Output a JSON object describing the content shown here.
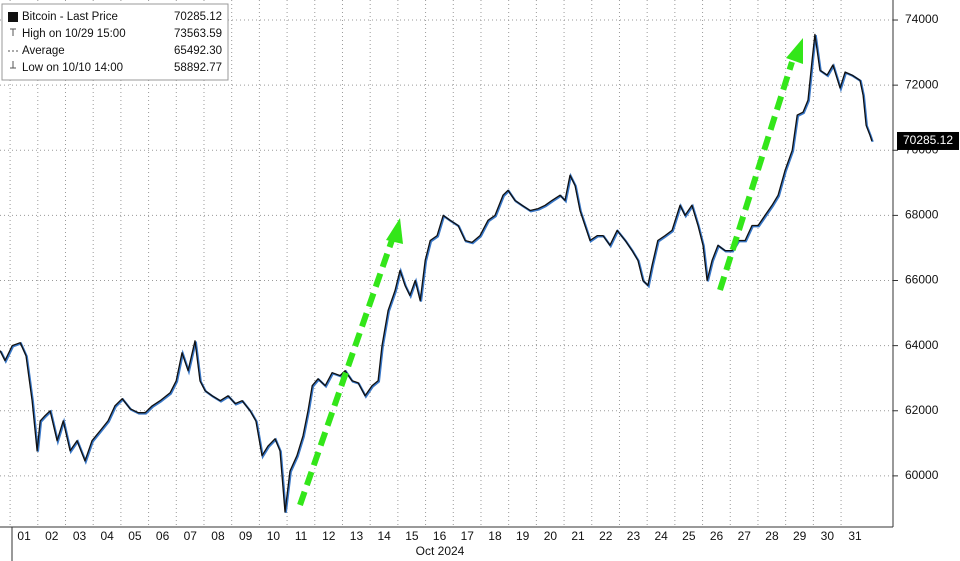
{
  "chart_data": {
    "type": "line",
    "x_title": "Oct 2024",
    "series": [
      {
        "name": "Bitcoin - Last Price",
        "color": "#111111",
        "values": [
          63850,
          63540,
          64000,
          64090,
          63690,
          62310,
          60770,
          61690,
          61850,
          62000,
          61080,
          61690,
          60770,
          61080,
          60460,
          61080,
          61380,
          61690,
          62150,
          62370,
          62060,
          61940,
          61940,
          62150,
          62310,
          62550,
          62920,
          63780,
          63230,
          64150,
          62920,
          62620,
          62460,
          62310,
          62460,
          62220,
          62310,
          62000,
          61690,
          60620,
          60920,
          61140,
          60770,
          58890,
          60150,
          60620,
          61230,
          62000,
          62770,
          62980,
          62770,
          63170,
          63080,
          63230,
          62920,
          62860,
          62460,
          62770,
          62920,
          64000,
          65080,
          65690,
          66310,
          65850,
          65540,
          66000,
          65380,
          66620,
          67230,
          67380,
          68000,
          67850,
          67690,
          67230,
          67170,
          67380,
          67850,
          68000,
          68620,
          68770,
          68460,
          68310,
          68150,
          68210,
          68310,
          68460,
          68620,
          68460,
          69230,
          68920,
          68150,
          67690,
          67230,
          67380,
          67380,
          67080,
          67540,
          67230,
          66920,
          66620,
          66000,
          65850,
          66460,
          67230,
          67380,
          67540,
          68310,
          68000,
          68310,
          67690,
          67080,
          66000,
          66620,
          67080,
          66920,
          66920,
          67230,
          67230,
          67690,
          67690,
          68000,
          68310,
          68620,
          69380,
          70000,
          71080,
          71170,
          71540,
          72770,
          73560,
          72460,
          72310,
          72620,
          71910,
          72400,
          72310,
          72150,
          71690,
          70770,
          70460,
          70285.12
        ]
      }
    ],
    "x": [
      0.13,
      0.31,
      0.57,
      0.86,
      1.07,
      1.29,
      1.47,
      1.58,
      1.76,
      1.94,
      2.19,
      2.41,
      2.66,
      2.91,
      3.2,
      3.45,
      3.74,
      4.03,
      4.28,
      4.54,
      4.83,
      5.12,
      5.37,
      5.62,
      5.91,
      6.27,
      6.49,
      6.7,
      6.92,
      7.17,
      7.35,
      7.53,
      7.79,
      8.08,
      8.36,
      8.62,
      8.87,
      9.16,
      9.37,
      9.59,
      9.81,
      10.06,
      10.24,
      10.42,
      10.6,
      10.85,
      11.07,
      11.25,
      11.4,
      11.61,
      11.87,
      12.12,
      12.41,
      12.59,
      12.84,
      13.06,
      13.31,
      13.56,
      13.78,
      13.92,
      14.14,
      14.39,
      14.57,
      14.75,
      14.93,
      15.12,
      15.3,
      15.48,
      15.66,
      15.91,
      16.13,
      16.38,
      16.67,
      16.92,
      17.17,
      17.46,
      17.75,
      18,
      18.29,
      18.47,
      18.72,
      18.98,
      19.27,
      19.56,
      19.81,
      20.06,
      20.35,
      20.53,
      20.71,
      20.89,
      21.07,
      21.25,
      21.43,
      21.69,
      21.9,
      22.15,
      22.41,
      22.7,
      22.95,
      23.16,
      23.34,
      23.52,
      23.67,
      23.88,
      24.14,
      24.39,
      24.68,
      24.86,
      25.11,
      25.33,
      25.51,
      25.66,
      25.84,
      26.05,
      26.31,
      26.56,
      26.78,
      27.03,
      27.28,
      27.5,
      27.75,
      28,
      28.22,
      28.47,
      28.73,
      28.91,
      29.12,
      29.3,
      29.45,
      29.55,
      29.73,
      29.99,
      30.2,
      30.46,
      30.64,
      30.89,
      31.18,
      31.29,
      31.4,
      31.54,
      31.61
    ],
    "xlim": [
      0.13,
      32.37
    ],
    "xticks": [
      {
        "value": 1,
        "label": "01"
      },
      {
        "value": 2,
        "label": "02"
      },
      {
        "value": 3,
        "label": "03"
      },
      {
        "value": 4,
        "label": "04"
      },
      {
        "value": 5,
        "label": "05"
      },
      {
        "value": 6,
        "label": "06"
      },
      {
        "value": 7,
        "label": "07"
      },
      {
        "value": 8,
        "label": "08"
      },
      {
        "value": 9,
        "label": "09"
      },
      10,
      11,
      12,
      13,
      14,
      15,
      16,
      17,
      18,
      19,
      20,
      21,
      22,
      23,
      24,
      25,
      26,
      27,
      28,
      29,
      30,
      31
    ],
    "ylim": [
      58430,
      74615
    ],
    "yticks": [
      60000,
      62000,
      64000,
      66000,
      68000,
      70000,
      72000,
      74000
    ],
    "grid": true,
    "last_price": 70285.12,
    "stats": [
      {
        "label": "High on 10/29 15:00",
        "value": 73563.59
      },
      {
        "label": "Average",
        "value": 65492.3,
        "value_label": "65492.30"
      },
      {
        "label": "Low on 10/10 14:00",
        "value": 58892.77
      }
    ]
  }
}
